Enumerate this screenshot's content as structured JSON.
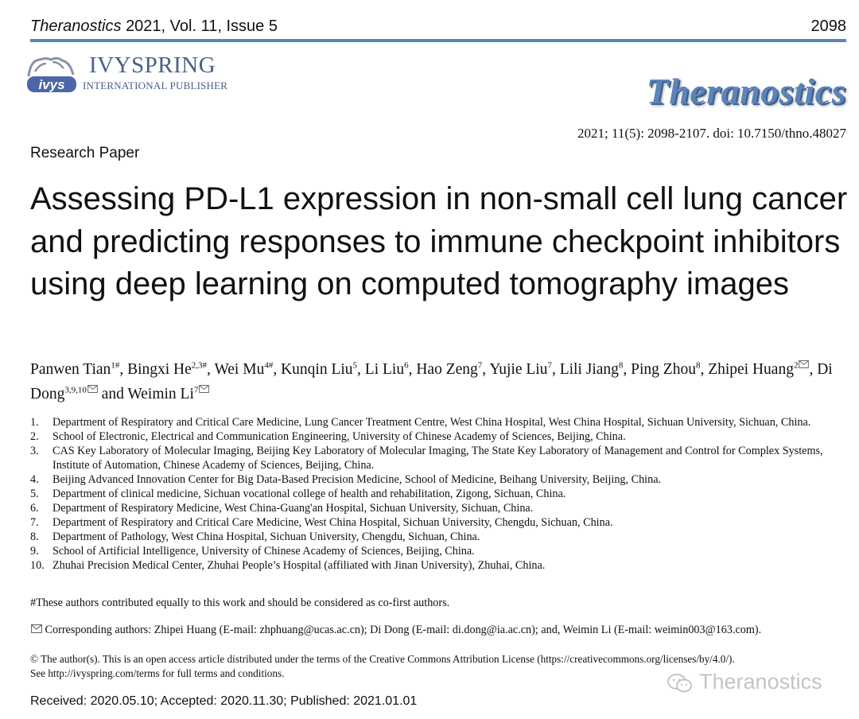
{
  "header": {
    "journal": "Theranostics",
    "volume_issue": "2021, Vol. 11, Issue 5",
    "page_number": "2098"
  },
  "publisher": {
    "name": "IVYSPRING",
    "subtitle": "INTERNATIONAL PUBLISHER",
    "logo_text": "ivys"
  },
  "journal_logo": "Theranostics",
  "citation": "2021; 11(5): 2098-2107. doi: 10.7150/thno.48027",
  "article_type": "Research Paper",
  "title": "Assessing PD-L1 expression in non-small cell lung cancer and predicting responses to immune checkpoint inhibitors using deep learning on computed tomography images",
  "authors": [
    {
      "name": "Panwen Tian",
      "sup": "1#",
      "sep": ", "
    },
    {
      "name": "Bingxi He",
      "sup": "2,3#",
      "sep": ", "
    },
    {
      "name": "Wei Mu",
      "sup": "4#",
      "sep": ", "
    },
    {
      "name": "Kunqin Liu",
      "sup": "5",
      "sep": ", "
    },
    {
      "name": "Li Liu",
      "sup": "6",
      "sep": ", "
    },
    {
      "name": "Hao Zeng",
      "sup": "7",
      "sep": ", "
    },
    {
      "name": "Yujie Liu",
      "sup": "7",
      "sep": ", "
    },
    {
      "name": "Lili Jiang",
      "sup": "8",
      "sep": ", "
    },
    {
      "name": "Ping Zhou",
      "sup": "8",
      "sep": ", "
    },
    {
      "name": "Zhipei Huang",
      "sup": "2",
      "corresponding": true,
      "sep": ", "
    },
    {
      "name": "Di Dong",
      "sup": "3,9,10",
      "corresponding": true,
      "sep": " and "
    },
    {
      "name": "Weimin Li",
      "sup": "7",
      "corresponding": true,
      "sep": ""
    }
  ],
  "affiliations": [
    {
      "num": "1.",
      "text": "Department of Respiratory and Critical Care Medicine, Lung Cancer Treatment Centre, West China Hospital, West China Hospital, Sichuan University, Sichuan, China."
    },
    {
      "num": "2.",
      "text": "School of Electronic, Electrical and Communication Engineering, University of Chinese Academy of Sciences, Beijing, China."
    },
    {
      "num": "3.",
      "text": "CAS Key Laboratory of Molecular Imaging, Beijing Key Laboratory of Molecular Imaging, The State Key Laboratory of Management and Control for Complex Systems, Institute of Automation, Chinese Academy of Sciences, Beijing, China."
    },
    {
      "num": "4.",
      "text": "Beijing Advanced Innovation Center for Big Data-Based Precision Medicine, School of Medicine, Beihang University, Beijing, China."
    },
    {
      "num": "5.",
      "text": "Department of clinical medicine, Sichuan vocational college of health and rehabilitation, Zigong, Sichuan, China."
    },
    {
      "num": "6.",
      "text": "Department of Respiratory Medicine, West China-Guang'an Hospital, Sichuan University, Sichuan, China."
    },
    {
      "num": "7.",
      "text": "Department of Respiratory and Critical Care Medicine, West China Hospital, Sichuan University, Chengdu, Sichuan, China."
    },
    {
      "num": "8.",
      "text": "Department of Pathology, West China Hospital, Sichuan University, Chengdu, Sichuan, China."
    },
    {
      "num": "9.",
      "text": "School of Artificial Intelligence, University of Chinese Academy of Sciences, Beijing, China."
    },
    {
      "num": "10.",
      "text": "Zhuhai Precision Medical Center, Zhuhai People’s Hospital (affiliated with Jinan University), Zhuhai, China."
    }
  ],
  "equal_contribution": "#These authors contributed equally to this work and should be considered as co-first authors.",
  "corresponding": "Corresponding authors: Zhipei Huang (E-mail: zhphuang@ucas.ac.cn); Di Dong (E-mail: di.dong@ia.ac.cn); and, Weimin Li (E-mail: weimin003@163.com).",
  "license_line1": "© The author(s). This is an open access article distributed under the terms of the Creative Commons Attribution License (https://creativecommons.org/licenses/by/4.0/).",
  "license_line2": "See http://ivyspring.com/terms for full terms and conditions.",
  "dates": "Received: 2020.05.10; Accepted: 2020.11.30; Published: 2021.01.01",
  "watermark": "Theranostics"
}
